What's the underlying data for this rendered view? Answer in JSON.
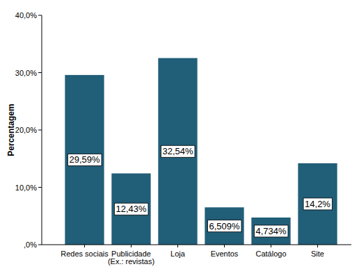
{
  "chart_data": {
    "type": "bar",
    "y_label": "Percentagem",
    "categories": [
      "Redes sociais",
      "Publicidade (Ex.: revistas)",
      "Loja",
      "Eventos",
      "Catálogo",
      "Site"
    ],
    "values": [
      29.59,
      12.43,
      32.54,
      6.509,
      4.734,
      14.2
    ],
    "value_labels": [
      "29,59%",
      "12,43%",
      "32,54%",
      "6,509%",
      "4,734%",
      "14,2%"
    ],
    "data_labels": true,
    "color": "#215e78",
    "ylim": [
      0,
      40
    ],
    "yticks": [
      {
        "value": 0,
        "label": ",0%"
      },
      {
        "value": 10,
        "label": "10,0%"
      },
      {
        "value": 20,
        "label": "20,0%"
      },
      {
        "value": 30,
        "label": "30,0%"
      },
      {
        "value": 40,
        "label": "40,0%"
      }
    ],
    "grid": false
  }
}
